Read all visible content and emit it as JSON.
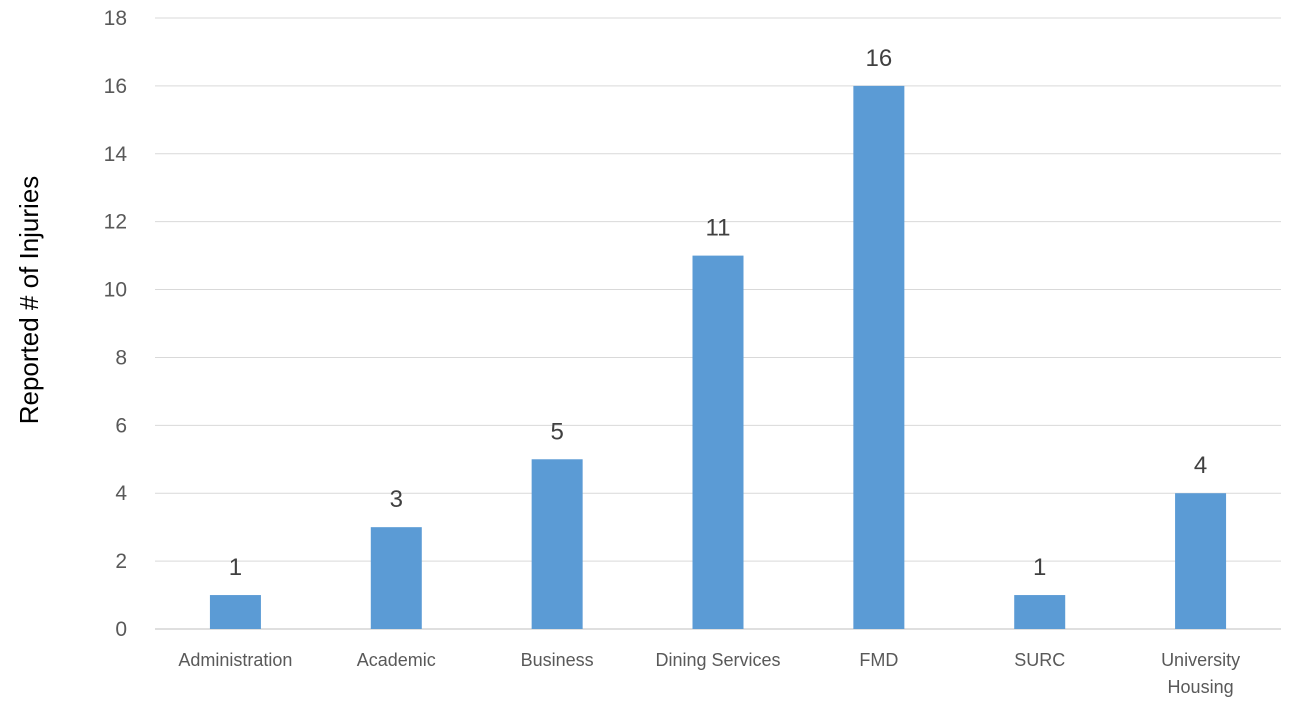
{
  "chart_data": {
    "type": "bar",
    "title": "",
    "xlabel": "",
    "ylabel": "Reported # of Injuries",
    "categories": [
      [
        "Administration"
      ],
      [
        "Academic"
      ],
      [
        "Business"
      ],
      [
        "Dining Services"
      ],
      [
        "FMD"
      ],
      [
        "SURC"
      ],
      [
        "University",
        "Housing"
      ]
    ],
    "values": [
      1,
      3,
      5,
      11,
      16,
      1,
      4
    ],
    "data_labels": [
      "1",
      "3",
      "5",
      "11",
      "16",
      "1",
      "4"
    ],
    "ylim": [
      0,
      18
    ],
    "yticks": [
      0,
      2,
      4,
      6,
      8,
      10,
      12,
      14,
      16,
      18
    ],
    "ytick_labels": [
      "0",
      "2",
      "4",
      "6",
      "8",
      "10",
      "12",
      "14",
      "16",
      "18"
    ],
    "grid": true,
    "legend": "none",
    "colors": {
      "bar": "#5b9bd5"
    }
  }
}
